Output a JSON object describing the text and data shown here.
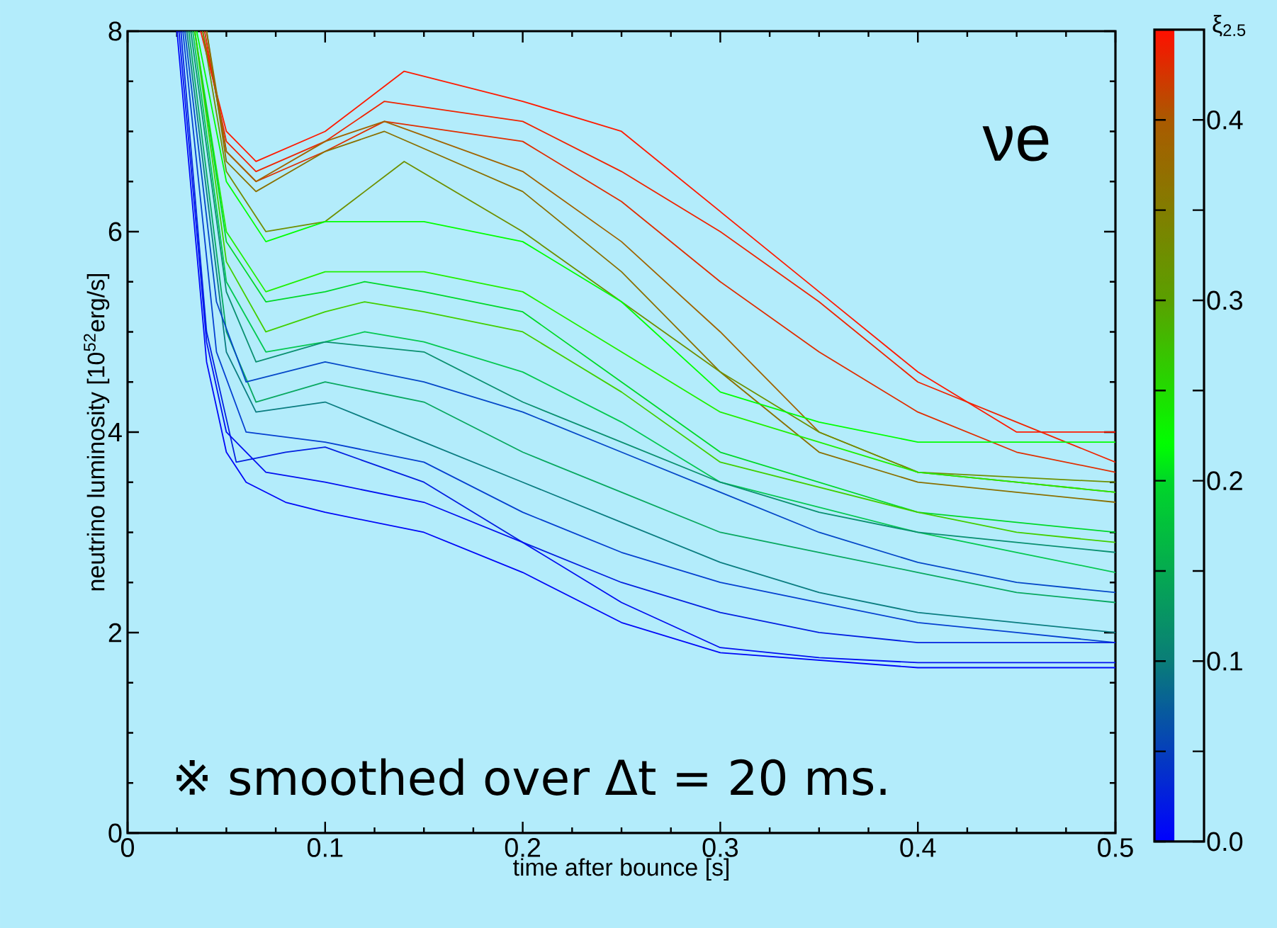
{
  "chart_data": {
    "type": "line",
    "xlabel": "time after bounce [s]",
    "ylabel": "neutrino luminosity [10$^{52}$erg/s]",
    "clabel": "ξ$_{2.5}$",
    "xlim": [
      0,
      0.5
    ],
    "ylim": [
      0,
      8
    ],
    "xticks": [
      0,
      0.1,
      0.2,
      0.3,
      0.4,
      0.5
    ],
    "yticks": [
      0,
      2,
      4,
      6,
      8
    ],
    "clim": [
      0,
      0.45
    ],
    "cticks": [
      {
        "value": 0,
        "label": "0.0"
      },
      {
        "value": 0.05,
        "label": null
      },
      0.1,
      {
        "value": 0.15,
        "label": null
      },
      0.2,
      {
        "value": 0.25,
        "label": null
      },
      0.3,
      {
        "value": 0.35,
        "label": null
      },
      0.4
    ],
    "grid": false,
    "annotations": [
      "※ smoothed over Δt = 20 ms.",
      "νe"
    ],
    "series": [
      {
        "color": "#ff1a00",
        "x": [
          0.037,
          0.05,
          0.065,
          0.1,
          0.14,
          0.2,
          0.25,
          0.3,
          0.35,
          0.4,
          0.45,
          0.5
        ],
        "values": [
          8,
          7.0,
          6.7,
          7.0,
          7.6,
          7.3,
          7.0,
          6.2,
          5.4,
          4.6,
          4.0,
          4.0
        ]
      },
      {
        "color": "#f02400",
        "x": [
          0.038,
          0.05,
          0.065,
          0.1,
          0.13,
          0.2,
          0.25,
          0.3,
          0.35,
          0.4,
          0.45,
          0.5
        ],
        "values": [
          8,
          6.9,
          6.6,
          6.9,
          7.3,
          7.1,
          6.6,
          6.0,
          5.3,
          4.5,
          4.1,
          3.7
        ]
      },
      {
        "color": "#e02e00",
        "x": [
          0.039,
          0.05,
          0.065,
          0.1,
          0.13,
          0.2,
          0.25,
          0.3,
          0.35,
          0.4,
          0.45,
          0.5
        ],
        "values": [
          8,
          6.8,
          6.5,
          6.8,
          7.1,
          6.9,
          6.3,
          5.5,
          4.8,
          4.2,
          3.8,
          3.6
        ]
      },
      {
        "color": "#a06400",
        "x": [
          0.04,
          0.05,
          0.065,
          0.1,
          0.13,
          0.2,
          0.25,
          0.3,
          0.35,
          0.4,
          0.45,
          0.5
        ],
        "values": [
          8,
          6.8,
          6.5,
          6.9,
          7.1,
          6.6,
          5.9,
          5.0,
          4.0,
          3.6,
          3.5,
          3.4
        ]
      },
      {
        "color": "#8a7000",
        "x": [
          0.04,
          0.05,
          0.065,
          0.1,
          0.13,
          0.2,
          0.25,
          0.3,
          0.35,
          0.4,
          0.45,
          0.5
        ],
        "values": [
          8,
          6.7,
          6.4,
          6.8,
          7.0,
          6.4,
          5.6,
          4.6,
          3.8,
          3.5,
          3.4,
          3.3
        ]
      },
      {
        "color": "#6e9000",
        "x": [
          0.038,
          0.05,
          0.07,
          0.1,
          0.12,
          0.14,
          0.2,
          0.25,
          0.3,
          0.35,
          0.4,
          0.5
        ],
        "values": [
          8,
          6.6,
          6.0,
          6.1,
          6.4,
          6.7,
          6.0,
          5.3,
          4.6,
          4.0,
          3.6,
          3.5
        ]
      },
      {
        "color": "#00ff00",
        "x": [
          0.035,
          0.05,
          0.07,
          0.1,
          0.15,
          0.2,
          0.25,
          0.3,
          0.35,
          0.4,
          0.45,
          0.5
        ],
        "values": [
          8,
          6.5,
          5.9,
          6.1,
          6.1,
          5.9,
          5.3,
          4.4,
          4.1,
          3.9,
          3.9,
          3.9
        ]
      },
      {
        "color": "#20f000",
        "x": [
          0.034,
          0.05,
          0.07,
          0.1,
          0.15,
          0.2,
          0.25,
          0.3,
          0.35,
          0.4,
          0.45,
          0.5
        ],
        "values": [
          8,
          6.0,
          5.4,
          5.6,
          5.6,
          5.4,
          4.8,
          4.2,
          3.9,
          3.6,
          3.5,
          3.4
        ]
      },
      {
        "color": "#00d828",
        "x": [
          0.034,
          0.05,
          0.07,
          0.1,
          0.12,
          0.15,
          0.2,
          0.25,
          0.3,
          0.4,
          0.45,
          0.5
        ],
        "values": [
          8,
          5.9,
          5.3,
          5.4,
          5.5,
          5.4,
          5.2,
          4.5,
          3.8,
          3.2,
          3.1,
          3.0
        ]
      },
      {
        "color": "#40d000",
        "x": [
          0.034,
          0.05,
          0.07,
          0.1,
          0.12,
          0.15,
          0.2,
          0.25,
          0.3,
          0.4,
          0.45,
          0.5
        ],
        "values": [
          8,
          5.7,
          5.0,
          5.2,
          5.3,
          5.2,
          5.0,
          4.4,
          3.7,
          3.2,
          3.0,
          2.9
        ]
      },
      {
        "color": "#05c850",
        "x": [
          0.033,
          0.05,
          0.07,
          0.1,
          0.12,
          0.15,
          0.2,
          0.25,
          0.3,
          0.4,
          0.45,
          0.5
        ],
        "values": [
          8,
          5.5,
          4.8,
          4.9,
          5.0,
          4.9,
          4.6,
          4.1,
          3.5,
          3.0,
          2.8,
          2.6
        ]
      },
      {
        "color": "#0a9070",
        "x": [
          0.032,
          0.05,
          0.065,
          0.1,
          0.15,
          0.2,
          0.25,
          0.3,
          0.35,
          0.4,
          0.45,
          0.5
        ],
        "values": [
          8,
          5.4,
          4.7,
          4.9,
          4.8,
          4.3,
          3.9,
          3.5,
          3.2,
          3.0,
          2.9,
          2.8
        ]
      },
      {
        "color": "#08a860",
        "x": [
          0.031,
          0.05,
          0.065,
          0.1,
          0.15,
          0.2,
          0.25,
          0.3,
          0.35,
          0.4,
          0.45,
          0.5
        ],
        "values": [
          8,
          5.0,
          4.3,
          4.5,
          4.3,
          3.8,
          3.4,
          3.0,
          2.8,
          2.6,
          2.4,
          2.3
        ]
      },
      {
        "color": "#0a7d80",
        "x": [
          0.03,
          0.05,
          0.065,
          0.1,
          0.15,
          0.2,
          0.25,
          0.3,
          0.35,
          0.4,
          0.45,
          0.5
        ],
        "values": [
          8,
          4.8,
          4.2,
          4.3,
          3.9,
          3.5,
          3.1,
          2.7,
          2.4,
          2.2,
          2.1,
          2.0
        ]
      },
      {
        "color": "#0548c8",
        "x": [
          0.029,
          0.045,
          0.06,
          0.1,
          0.15,
          0.2,
          0.25,
          0.3,
          0.35,
          0.4,
          0.45,
          0.5
        ],
        "values": [
          8,
          5.3,
          4.5,
          4.7,
          4.5,
          4.2,
          3.8,
          3.4,
          3.0,
          2.7,
          2.5,
          2.4
        ]
      },
      {
        "color": "#0540d0",
        "x": [
          0.028,
          0.045,
          0.06,
          0.1,
          0.15,
          0.2,
          0.25,
          0.3,
          0.35,
          0.4,
          0.45,
          0.5
        ],
        "values": [
          8,
          4.8,
          4.0,
          3.9,
          3.7,
          3.2,
          2.8,
          2.5,
          2.3,
          2.1,
          2.0,
          1.9
        ]
      },
      {
        "color": "#0320e0",
        "x": [
          0.027,
          0.04,
          0.055,
          0.08,
          0.1,
          0.15,
          0.2,
          0.25,
          0.3,
          0.35,
          0.4,
          0.5
        ],
        "values": [
          8,
          5.0,
          3.7,
          3.8,
          3.85,
          3.5,
          2.9,
          2.5,
          2.2,
          2.0,
          1.9,
          1.9
        ]
      },
      {
        "color": "#0210f0",
        "x": [
          0.026,
          0.04,
          0.05,
          0.07,
          0.1,
          0.15,
          0.2,
          0.25,
          0.3,
          0.35,
          0.4,
          0.5
        ],
        "values": [
          8,
          4.9,
          4.0,
          3.6,
          3.5,
          3.3,
          2.9,
          2.3,
          1.85,
          1.75,
          1.7,
          1.7
        ]
      },
      {
        "color": "#0008f8",
        "x": [
          0.025,
          0.04,
          0.05,
          0.06,
          0.08,
          0.1,
          0.15,
          0.2,
          0.25,
          0.3,
          0.4,
          0.5
        ],
        "values": [
          8,
          4.7,
          3.8,
          3.5,
          3.3,
          3.2,
          3.0,
          2.6,
          2.1,
          1.8,
          1.65,
          1.65
        ]
      }
    ]
  }
}
